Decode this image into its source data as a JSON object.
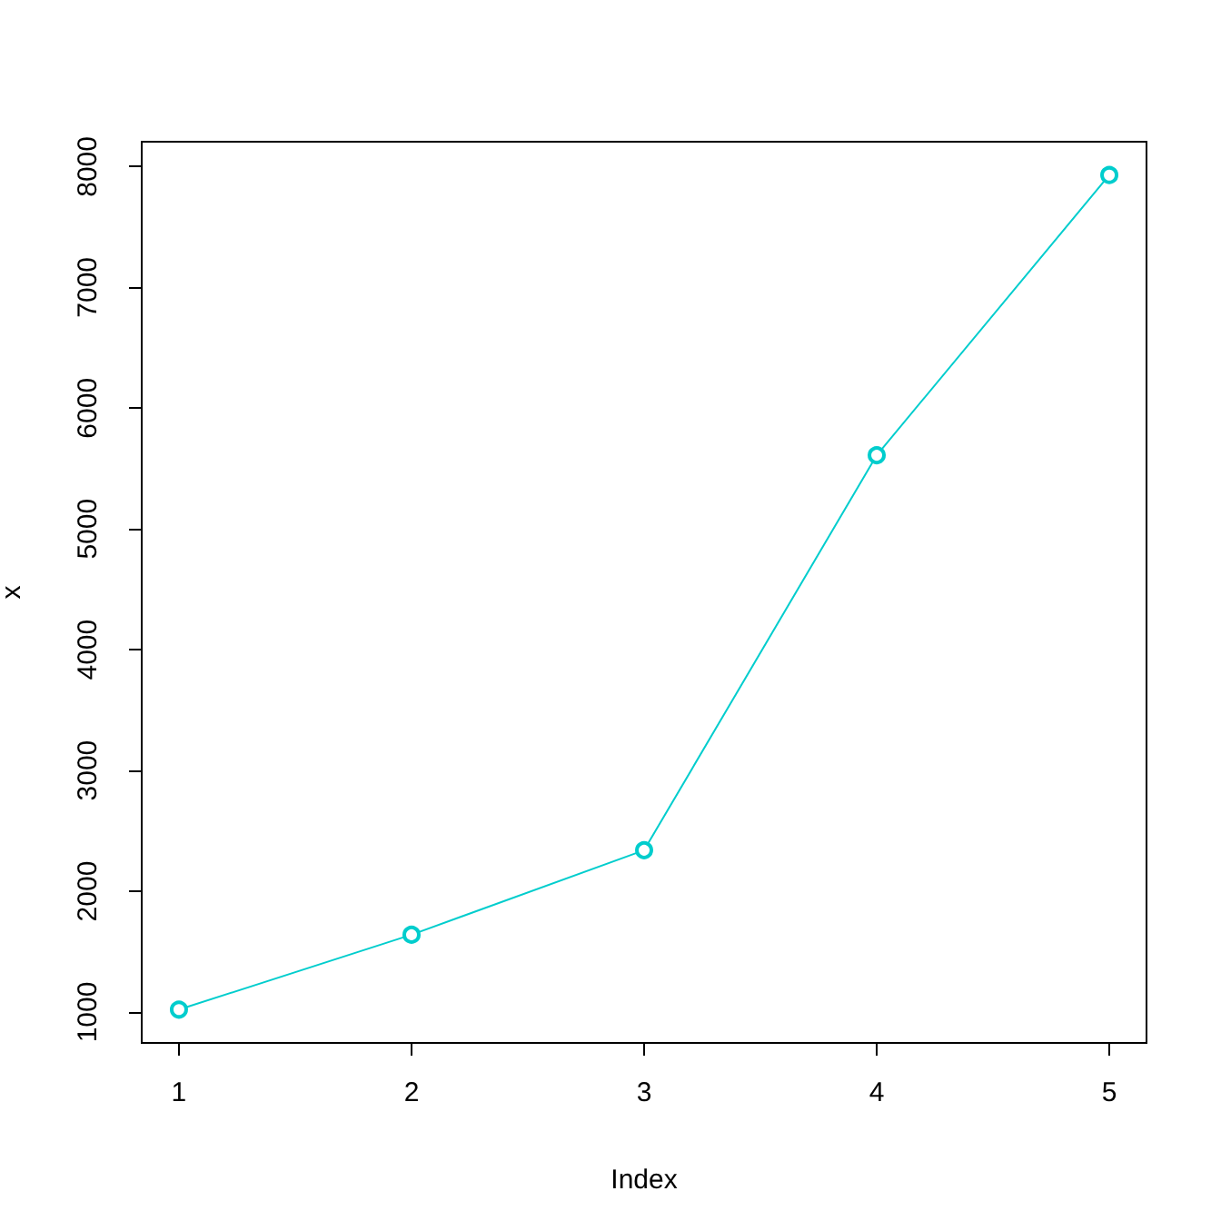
{
  "chart_data": {
    "type": "line",
    "x": [
      1,
      2,
      3,
      4,
      5
    ],
    "values": [
      1020,
      1640,
      2340,
      5610,
      7930
    ],
    "color": "#00cdcd",
    "xlabel": "Index",
    "ylabel": "x",
    "xlim": [
      0.84,
      5.16
    ],
    "xticks": [
      1,
      2,
      3,
      4,
      5
    ],
    "ylim": [
      744,
      8206
    ],
    "yticks": [
      1000,
      2000,
      3000,
      4000,
      5000,
      6000,
      7000,
      8000
    ],
    "marker": "circle"
  }
}
